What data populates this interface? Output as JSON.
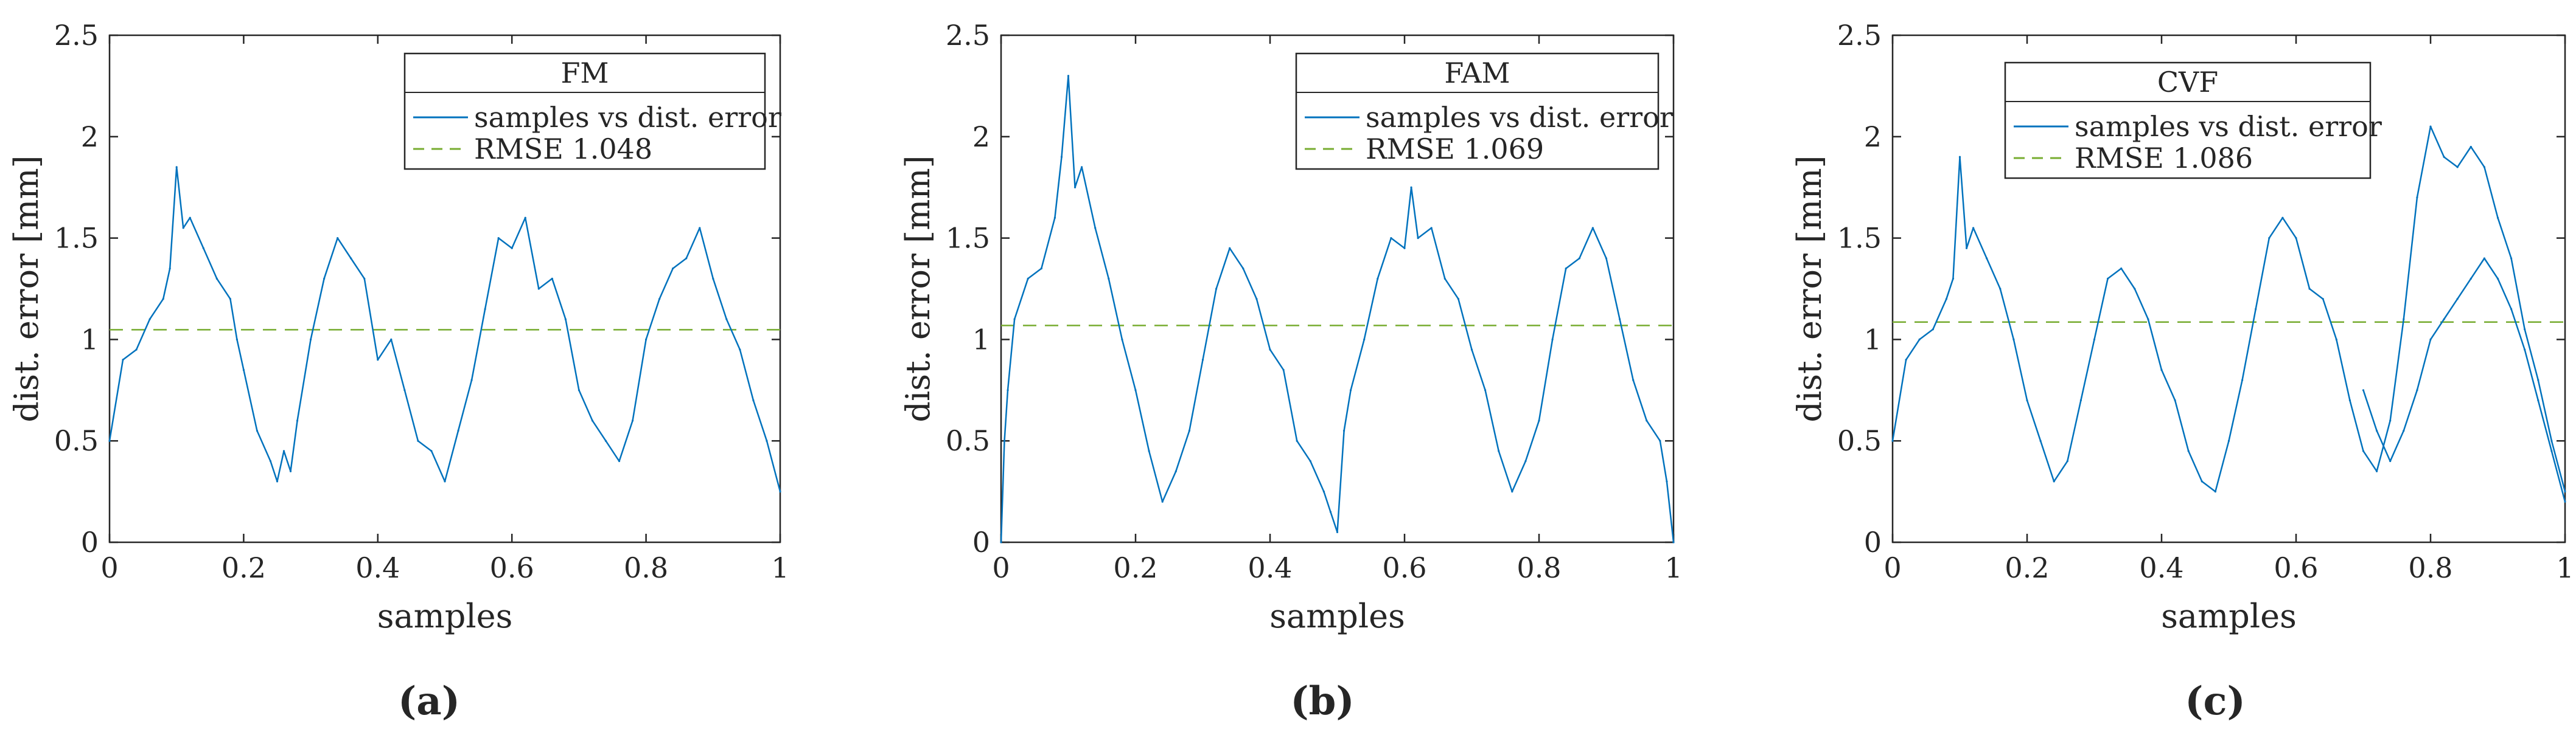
{
  "chart_data": [
    {
      "type": "line",
      "panel_label": "(a)",
      "legend_title": "FM",
      "legend_entries": [
        "samples vs dist. error",
        "RMSE 1.048"
      ],
      "xlabel": "samples",
      "ylabel": "dist. error [mm]",
      "xlim": [
        0,
        1
      ],
      "ylim": [
        0,
        2.5
      ],
      "xticks": [
        "0",
        "0.2",
        "0.4",
        "0.6",
        "0.8",
        "1"
      ],
      "yticks": [
        "0",
        "0.5",
        "1",
        "1.5",
        "2",
        "2.5"
      ],
      "rmse": 1.048,
      "series": [
        {
          "name": "samples vs dist. error",
          "x": [
            0,
            0.02,
            0.04,
            0.06,
            0.08,
            0.09,
            0.1,
            0.11,
            0.12,
            0.14,
            0.16,
            0.18,
            0.19,
            0.2,
            0.22,
            0.24,
            0.25,
            0.26,
            0.27,
            0.28,
            0.3,
            0.32,
            0.34,
            0.36,
            0.38,
            0.4,
            0.42,
            0.44,
            0.46,
            0.48,
            0.5,
            0.52,
            0.54,
            0.56,
            0.58,
            0.6,
            0.62,
            0.64,
            0.66,
            0.68,
            0.7,
            0.72,
            0.74,
            0.76,
            0.78,
            0.8,
            0.82,
            0.84,
            0.86,
            0.88,
            0.9,
            0.92,
            0.94,
            0.96,
            0.98,
            1.0
          ],
          "values": [
            0.5,
            0.9,
            0.95,
            1.1,
            1.2,
            1.35,
            1.85,
            1.55,
            1.6,
            1.45,
            1.3,
            1.2,
            1.0,
            0.85,
            0.55,
            0.4,
            0.3,
            0.45,
            0.35,
            0.6,
            1.0,
            1.3,
            1.5,
            1.4,
            1.3,
            0.9,
            1.0,
            0.75,
            0.5,
            0.45,
            0.3,
            0.55,
            0.8,
            1.15,
            1.5,
            1.45,
            1.6,
            1.25,
            1.3,
            1.1,
            0.75,
            0.6,
            0.5,
            0.4,
            0.6,
            1.0,
            1.2,
            1.35,
            1.4,
            1.55,
            1.3,
            1.1,
            0.95,
            0.7,
            0.5,
            0.25
          ]
        }
      ]
    },
    {
      "type": "line",
      "panel_label": "(b)",
      "legend_title": "FAM",
      "legend_entries": [
        "samples vs dist. error",
        "RMSE 1.069"
      ],
      "xlabel": "samples",
      "ylabel": "dist. error [mm]",
      "xlim": [
        0,
        1
      ],
      "ylim": [
        0,
        2.5
      ],
      "xticks": [
        "0",
        "0.2",
        "0.4",
        "0.6",
        "0.8",
        "1"
      ],
      "yticks": [
        "0",
        "0.5",
        "1",
        "1.5",
        "2",
        "2.5"
      ],
      "rmse": 1.069,
      "series": [
        {
          "name": "samples vs dist. error",
          "x": [
            0,
            0.005,
            0.01,
            0.02,
            0.04,
            0.06,
            0.08,
            0.09,
            0.1,
            0.11,
            0.12,
            0.14,
            0.16,
            0.18,
            0.2,
            0.22,
            0.24,
            0.26,
            0.28,
            0.3,
            0.32,
            0.34,
            0.36,
            0.38,
            0.4,
            0.42,
            0.44,
            0.46,
            0.48,
            0.49,
            0.5,
            0.51,
            0.52,
            0.54,
            0.56,
            0.58,
            0.6,
            0.61,
            0.62,
            0.64,
            0.66,
            0.68,
            0.7,
            0.72,
            0.74,
            0.76,
            0.78,
            0.8,
            0.82,
            0.84,
            0.86,
            0.88,
            0.9,
            0.92,
            0.94,
            0.96,
            0.98,
            0.99,
            1.0
          ],
          "values": [
            0.0,
            0.5,
            0.75,
            1.1,
            1.3,
            1.35,
            1.6,
            1.9,
            2.3,
            1.75,
            1.85,
            1.55,
            1.3,
            1.0,
            0.75,
            0.45,
            0.2,
            0.35,
            0.55,
            0.9,
            1.25,
            1.45,
            1.35,
            1.2,
            0.95,
            0.85,
            0.5,
            0.4,
            0.25,
            0.15,
            0.05,
            0.55,
            0.75,
            1.0,
            1.3,
            1.5,
            1.45,
            1.75,
            1.5,
            1.55,
            1.3,
            1.2,
            0.95,
            0.75,
            0.45,
            0.25,
            0.4,
            0.6,
            1.0,
            1.35,
            1.4,
            1.55,
            1.4,
            1.1,
            0.8,
            0.6,
            0.5,
            0.3,
            0.0
          ]
        }
      ]
    },
    {
      "type": "line",
      "panel_label": "(c)",
      "legend_title": "CVF",
      "legend_entries": [
        "samples vs dist. error",
        "RMSE 1.086"
      ],
      "xlabel": "samples",
      "ylabel": "dist. error [mm]",
      "xlim": [
        0,
        1
      ],
      "ylim": [
        0,
        2.5
      ],
      "xticks": [
        "0",
        "0.2",
        "0.4",
        "0.6",
        "0.8",
        "1"
      ],
      "yticks": [
        "0",
        "0.5",
        "1",
        "1.5",
        "2",
        "2.5"
      ],
      "rmse": 1.086,
      "series": [
        {
          "name": "samples vs dist. error",
          "x": [
            0,
            0.02,
            0.04,
            0.06,
            0.08,
            0.09,
            0.1,
            0.11,
            0.12,
            0.14,
            0.16,
            0.18,
            0.2,
            0.22,
            0.24,
            0.26,
            0.28,
            0.3,
            0.32,
            0.34,
            0.36,
            0.38,
            0.4,
            0.42,
            0.44,
            0.46,
            0.48,
            0.5,
            0.52,
            0.54,
            0.56,
            0.58,
            0.6,
            0.62,
            0.64,
            0.66,
            0.68,
            0.7,
            0.72,
            0.74,
            0.76,
            0.78,
            0.8,
            0.82,
            0.84,
            0.86,
            0.88,
            0.9,
            0.92,
            0.94,
            0.96,
            0.98,
            1.0
          ],
          "values": [
            0.5,
            0.9,
            1.0,
            1.05,
            1.2,
            1.3,
            1.9,
            1.45,
            1.55,
            1.4,
            1.25,
            1.0,
            0.7,
            0.5,
            0.3,
            0.4,
            0.7,
            1.0,
            1.3,
            1.35,
            1.25,
            1.1,
            0.85,
            0.7,
            0.45,
            0.3,
            0.25,
            0.5,
            0.8,
            1.15,
            1.5,
            1.6,
            1.5,
            1.25,
            1.2,
            1.0,
            0.7,
            0.45,
            0.35,
            0.6,
            1.1,
            1.7,
            2.05,
            1.9,
            1.85,
            1.95,
            1.85,
            1.6,
            1.4,
            1.05,
            0.8,
            0.5,
            0.25
          ]
        },
        {
          "name": "samples vs dist. error (overlap)",
          "x": [
            0.7,
            0.72,
            0.74,
            0.76,
            0.78,
            0.8,
            0.82,
            0.84,
            0.86,
            0.88,
            0.9,
            0.92,
            0.94,
            0.96,
            0.98,
            1.0
          ],
          "values": [
            0.75,
            0.55,
            0.4,
            0.55,
            0.75,
            1.0,
            1.1,
            1.2,
            1.3,
            1.4,
            1.3,
            1.15,
            0.95,
            0.7,
            0.45,
            0.2
          ]
        }
      ]
    }
  ],
  "colors": {
    "series": "#0072BD",
    "rmse": "#77AC30",
    "axis": "#262626"
  }
}
